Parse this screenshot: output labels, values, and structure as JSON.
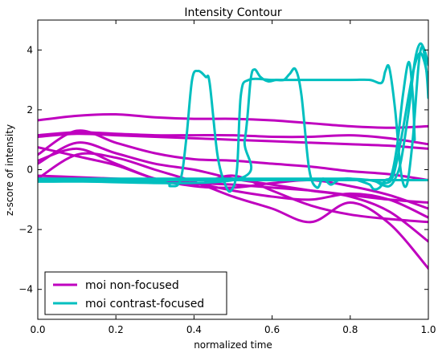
{
  "chart_data": {
    "type": "line",
    "title": "Intensity Contour",
    "xlabel": "normalized time",
    "ylabel": "z-score of intensity",
    "xlim": [
      0.0,
      1.0
    ],
    "ylim": [
      -5,
      5
    ],
    "xticks": [
      "0.0",
      "0.2",
      "0.4",
      "0.6",
      "0.8",
      "1.0"
    ],
    "yticks": [
      "−4",
      "−2",
      "0",
      "2",
      "4"
    ],
    "grid": false,
    "legend_position": "lower-left",
    "legend": [
      {
        "label": "moi non-focused",
        "color": "#bf00bf"
      },
      {
        "label": "moi contrast-focused",
        "color": "#00bfbf"
      }
    ],
    "x": [
      0.0,
      0.1,
      0.2,
      0.3,
      0.4,
      0.5,
      0.6,
      0.7,
      0.8,
      0.9,
      1.0
    ],
    "series": [
      {
        "group": "moi non-focused",
        "color": "#bf00bf",
        "values": [
          1.65,
          1.8,
          1.85,
          1.75,
          1.7,
          1.7,
          1.65,
          1.55,
          1.45,
          1.4,
          1.45
        ]
      },
      {
        "group": "moi non-focused",
        "color": "#bf00bf",
        "values": [
          1.15,
          1.25,
          1.2,
          1.15,
          1.15,
          1.15,
          1.1,
          1.1,
          1.15,
          1.05,
          0.85
        ]
      },
      {
        "group": "moi non-focused",
        "color": "#bf00bf",
        "values": [
          1.1,
          1.2,
          1.15,
          1.1,
          1.05,
          1.0,
          0.95,
          0.9,
          0.85,
          0.8,
          0.7
        ]
      },
      {
        "group": "moi non-focused",
        "color": "#bf00bf",
        "values": [
          0.5,
          1.3,
          0.9,
          0.55,
          0.35,
          0.3,
          0.2,
          0.1,
          -0.05,
          -0.15,
          -0.35
        ]
      },
      {
        "group": "moi non-focused",
        "color": "#bf00bf",
        "values": [
          0.3,
          0.7,
          0.2,
          -0.3,
          -0.55,
          -0.6,
          -0.45,
          -0.35,
          -0.55,
          -0.85,
          -1.3
        ]
      },
      {
        "group": "moi non-focused",
        "color": "#bf00bf",
        "values": [
          0.2,
          0.9,
          0.55,
          0.2,
          0.0,
          -0.3,
          -0.5,
          -0.7,
          -0.9,
          -1.4,
          -2.4
        ]
      },
      {
        "group": "moi non-focused",
        "color": "#bf00bf",
        "values": [
          -0.3,
          0.5,
          0.4,
          0.0,
          -0.4,
          -0.9,
          -1.3,
          -1.75,
          -1.1,
          -1.8,
          -3.3
        ]
      },
      {
        "group": "moi non-focused",
        "color": "#bf00bf",
        "values": [
          -0.2,
          -0.25,
          -0.3,
          -0.35,
          -0.45,
          -0.7,
          -0.9,
          -1.0,
          -0.8,
          -1.0,
          -1.6
        ]
      },
      {
        "group": "moi non-focused",
        "color": "#bf00bf",
        "values": [
          0.75,
          0.45,
          0.15,
          -0.3,
          -0.5,
          -0.2,
          -0.7,
          -1.2,
          -1.5,
          -1.65,
          -1.75
        ]
      },
      {
        "group": "moi non-focused",
        "color": "#bf00bf",
        "values": [
          -0.3,
          -0.3,
          -0.35,
          -0.4,
          -0.45,
          -0.5,
          -0.6,
          -0.7,
          -0.85,
          -1.0,
          -1.1
        ]
      },
      {
        "group": "moi contrast-focused",
        "color": "#00bfbf",
        "values": [
          -0.35,
          -0.35,
          -0.35,
          -0.35,
          -0.35,
          -0.35,
          -0.35,
          -0.35,
          -0.35,
          -0.35,
          -0.35
        ]
      }
    ],
    "series_xy": [
      {
        "group": "moi contrast-focused",
        "color": "#00bfbf",
        "points": [
          [
            0.0,
            -0.4
          ],
          [
            0.3,
            -0.4
          ],
          [
            0.34,
            -0.55
          ],
          [
            0.365,
            -0.35
          ],
          [
            0.38,
            1.0
          ],
          [
            0.395,
            3.0
          ],
          [
            0.41,
            3.3
          ],
          [
            0.43,
            3.1
          ],
          [
            0.44,
            2.9
          ],
          [
            0.46,
            0.5
          ],
          [
            0.48,
            -0.5
          ],
          [
            0.495,
            -0.7
          ],
          [
            0.51,
            0.0
          ],
          [
            0.52,
            2.5
          ],
          [
            0.54,
            3.0
          ],
          [
            0.6,
            3.0
          ],
          [
            0.65,
            3.0
          ],
          [
            0.7,
            3.0
          ],
          [
            0.8,
            3.0
          ],
          [
            0.85,
            3.0
          ],
          [
            0.88,
            2.9
          ],
          [
            0.89,
            3.3
          ],
          [
            0.9,
            3.4
          ],
          [
            0.915,
            2.0
          ],
          [
            0.93,
            -0.1
          ],
          [
            0.945,
            -0.5
          ],
          [
            0.96,
            1.0
          ],
          [
            0.975,
            3.5
          ],
          [
            0.985,
            4.1
          ],
          [
            0.995,
            3.3
          ],
          [
            1.0,
            2.4
          ]
        ]
      },
      {
        "group": "moi contrast-focused",
        "color": "#00bfbf",
        "points": [
          [
            0.0,
            -0.35
          ],
          [
            0.5,
            -0.35
          ],
          [
            0.53,
            1.0
          ],
          [
            0.545,
            3.0
          ],
          [
            0.555,
            3.35
          ],
          [
            0.57,
            3.1
          ],
          [
            0.59,
            2.95
          ],
          [
            0.61,
            3.0
          ],
          [
            0.63,
            3.0
          ],
          [
            0.645,
            3.2
          ],
          [
            0.66,
            3.35
          ],
          [
            0.675,
            2.5
          ],
          [
            0.695,
            0.0
          ],
          [
            0.715,
            -0.6
          ],
          [
            0.73,
            -0.3
          ],
          [
            0.75,
            -0.5
          ],
          [
            0.77,
            -0.35
          ],
          [
            0.8,
            -0.3
          ],
          [
            0.83,
            -0.4
          ],
          [
            0.85,
            -0.5
          ],
          [
            0.86,
            -0.65
          ],
          [
            0.875,
            -0.6
          ],
          [
            0.89,
            -0.35
          ],
          [
            0.905,
            -0.2
          ],
          [
            0.92,
            0.8
          ],
          [
            0.935,
            2.5
          ],
          [
            0.95,
            3.6
          ],
          [
            0.96,
            2.5
          ],
          [
            0.965,
            1.0
          ]
        ]
      },
      {
        "group": "moi contrast-focused",
        "color": "#00bfbf",
        "points": [
          [
            0.0,
            -0.35
          ],
          [
            0.6,
            -0.35
          ],
          [
            0.75,
            -0.35
          ],
          [
            0.85,
            -0.35
          ],
          [
            0.88,
            -0.5
          ],
          [
            0.9,
            -0.55
          ],
          [
            0.915,
            -0.3
          ],
          [
            0.93,
            0.3
          ],
          [
            0.95,
            2.0
          ],
          [
            0.965,
            3.6
          ],
          [
            0.978,
            4.2
          ],
          [
            0.99,
            4.0
          ],
          [
            1.0,
            3.5
          ]
        ]
      },
      {
        "group": "moi contrast-focused",
        "color": "#00bfbf",
        "points": [
          [
            0.0,
            -0.3
          ],
          [
            0.7,
            -0.3
          ],
          [
            0.8,
            -0.3
          ],
          [
            0.85,
            -0.35
          ],
          [
            0.89,
            -0.45
          ],
          [
            0.91,
            -0.2
          ],
          [
            0.93,
            1.0
          ],
          [
            0.95,
            2.5
          ],
          [
            0.96,
            3.2
          ],
          [
            0.97,
            3.7
          ],
          [
            0.98,
            3.9
          ],
          [
            0.99,
            3.6
          ],
          [
            1.0,
            3.0
          ]
        ]
      }
    ]
  }
}
